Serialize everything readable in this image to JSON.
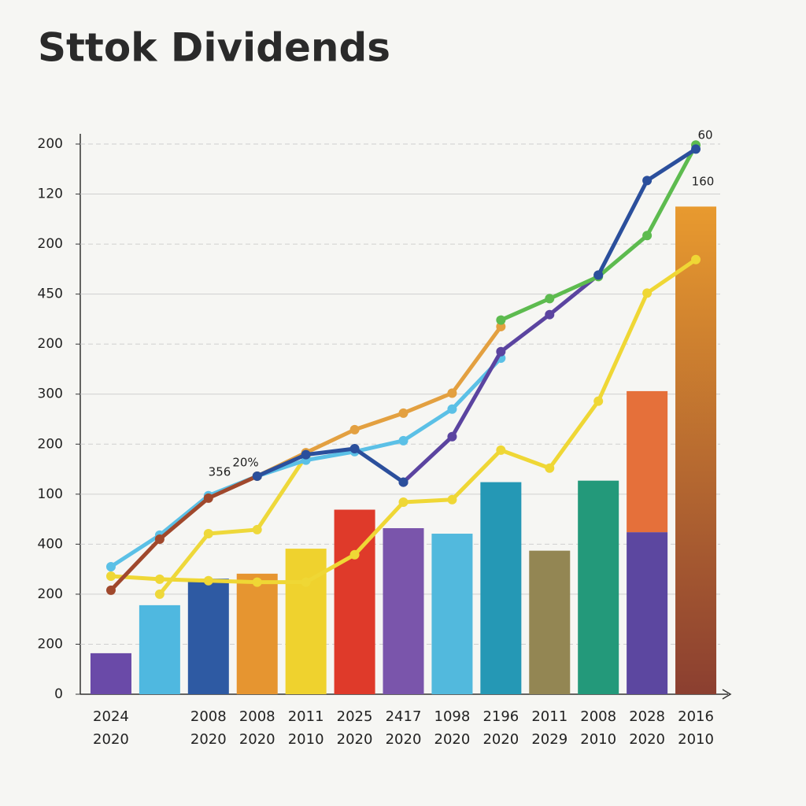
{
  "chart_data": {
    "type": "bar",
    "title": "Sttok Dividends",
    "categories": [
      [
        "2024",
        "2020"
      ],
      null,
      [
        "2008",
        "2020"
      ],
      [
        "2008",
        "2020"
      ],
      [
        "2011",
        "2010"
      ],
      [
        "2025",
        "2020"
      ],
      [
        "2417",
        "2020"
      ],
      [
        "1098",
        "2020"
      ],
      [
        "2196",
        "2020"
      ],
      [
        "2011",
        "2029"
      ],
      [
        "2008",
        "2010"
      ],
      [
        "2028",
        "2020"
      ],
      [
        "2016",
        "2010"
      ]
    ],
    "values": [
      0.82,
      1.78,
      2.31,
      2.41,
      2.91,
      3.69,
      3.32,
      3.21,
      4.24,
      2.87,
      4.27,
      3.24,
      9.75
    ],
    "colors": [
      "#6a4aa8",
      "#4fb8e0",
      "#2e5aa3",
      "#e69530",
      "#efd22e",
      "#df3a2a",
      "#7a55ab",
      "#52b9dd",
      "#2598b5",
      "#938653",
      "#23997a",
      "#5c47a0",
      [
        "#e89a2f",
        "#8b3f30"
      ]
    ],
    "stack_values": [
      null,
      null,
      null,
      null,
      null,
      null,
      null,
      null,
      null,
      null,
      null,
      2.82,
      null
    ],
    "stack_color": "#e5703a",
    "lines": [
      {
        "color": "#efd735",
        "values": [
          2.36,
          2.3,
          2.27,
          2.24,
          2.24,
          2.79,
          3.84,
          3.89,
          4.88,
          4.52,
          5.86,
          8.02,
          8.69
        ]
      },
      {
        "color": "#eed83a",
        "values": [
          null,
          2.0,
          3.21,
          3.29,
          4.76,
          null,
          null,
          null,
          null,
          null,
          null,
          null,
          null
        ]
      },
      {
        "color": "#5bc0e6",
        "values": [
          2.55,
          3.18,
          3.97,
          4.36,
          4.68,
          4.85,
          5.07,
          5.7,
          6.72,
          null,
          null,
          null,
          null
        ]
      },
      {
        "color": "#a0482c",
        "values": [
          2.08,
          3.1,
          3.92,
          4.36,
          null,
          null,
          null,
          null,
          null,
          null,
          null,
          null,
          null
        ]
      },
      {
        "color": "#e3a040",
        "values": [
          null,
          null,
          null,
          4.36,
          4.83,
          5.29,
          5.62,
          6.02,
          7.35,
          null,
          null,
          null,
          null
        ]
      },
      {
        "color": "#5b44a0",
        "values": [
          null,
          null,
          null,
          null,
          null,
          null,
          4.24,
          5.15,
          6.85,
          7.59,
          8.38,
          null,
          null
        ]
      },
      {
        "color": "#5dbb4f",
        "values": [
          null,
          null,
          null,
          null,
          null,
          null,
          null,
          null,
          7.48,
          7.91,
          8.35,
          9.17,
          10.98
        ]
      },
      {
        "color": "#2b4f9c",
        "values": [
          null,
          null,
          null,
          4.36,
          4.79,
          4.91,
          4.24,
          null,
          null,
          null,
          8.38,
          10.27,
          10.9
        ]
      }
    ],
    "annotations": [
      "356",
      "20%",
      "60",
      "160"
    ],
    "ylim": [
      0,
      11
    ],
    "yticks": [
      {
        "value": 0,
        "label": "0"
      },
      {
        "value": 1,
        "label": "200"
      },
      {
        "value": 2,
        "label": "200"
      },
      {
        "value": 3,
        "label": "400"
      },
      {
        "value": 4,
        "label": "100"
      },
      {
        "value": 5,
        "label": "200"
      },
      {
        "value": 6,
        "label": "300"
      },
      {
        "value": 7,
        "label": "200"
      },
      {
        "value": 8,
        "label": "450"
      },
      {
        "value": 9,
        "label": "200"
      },
      {
        "value": 10,
        "label": "120"
      },
      {
        "value": 11,
        "label": "200"
      }
    ],
    "grid": true
  }
}
